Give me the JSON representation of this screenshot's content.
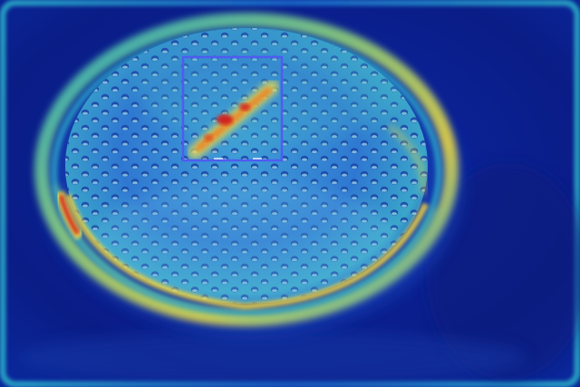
{
  "image": {
    "kind": "heatmap-overlay-photo",
    "subject": "perforated-circular-dish",
    "colormap": "jet",
    "colors": {
      "background": "#0b1e8f",
      "background_edge": "#1f6fd6",
      "dish_surface": "#3a8fd8",
      "dish_rim_bright": "#f2d23a",
      "hotspot_red": "#d21e1a",
      "hotspot_yellow": "#f4e04a",
      "hole_dark": "#1a3f9c",
      "hole_highlight": "#9ee0f0",
      "detection_box": "#4f5cf0"
    }
  },
  "detection": {
    "label": ""
  }
}
